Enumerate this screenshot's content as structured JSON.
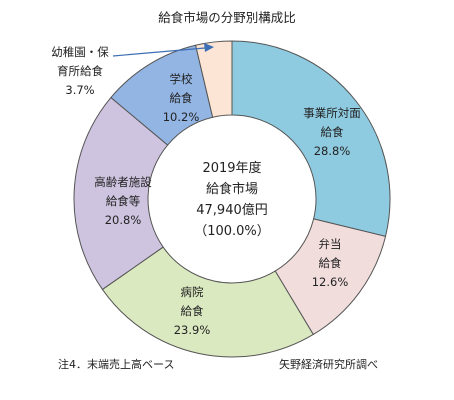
{
  "chart_data": {
    "type": "donut",
    "title": "給食市場の分野別構成比",
    "center_label": {
      "line1": "2019年度",
      "line2": "給食市場",
      "line3": "47,940億円",
      "line4": "（100.0%）"
    },
    "slices": [
      {
        "label_lines": [
          "事業所対面",
          "給食"
        ],
        "value": 28.8,
        "pct": "28.8%",
        "color": "#8fcbe0"
      },
      {
        "label_lines": [
          "弁当",
          "給食"
        ],
        "value": 12.6,
        "pct": "12.6%",
        "color": "#f2dddd"
      },
      {
        "label_lines": [
          "病院",
          "給食"
        ],
        "value": 23.9,
        "pct": "23.9%",
        "color": "#dbe9c0"
      },
      {
        "label_lines": [
          "高齢者施設",
          "給食等"
        ],
        "value": 20.8,
        "pct": "20.8%",
        "color": "#cfc4e0"
      },
      {
        "label_lines": [
          "学校",
          "給食"
        ],
        "value": 10.2,
        "pct": "10.2%",
        "color": "#93b5e3"
      },
      {
        "label_lines": [
          "幼稚園・保",
          "育所給食"
        ],
        "value": 3.7,
        "pct": "3.7%",
        "color": "#fce5d4"
      }
    ]
  },
  "footnote_left": "注4．末端売上高ベース",
  "footnote_right": "矢野経済研究所調べ"
}
